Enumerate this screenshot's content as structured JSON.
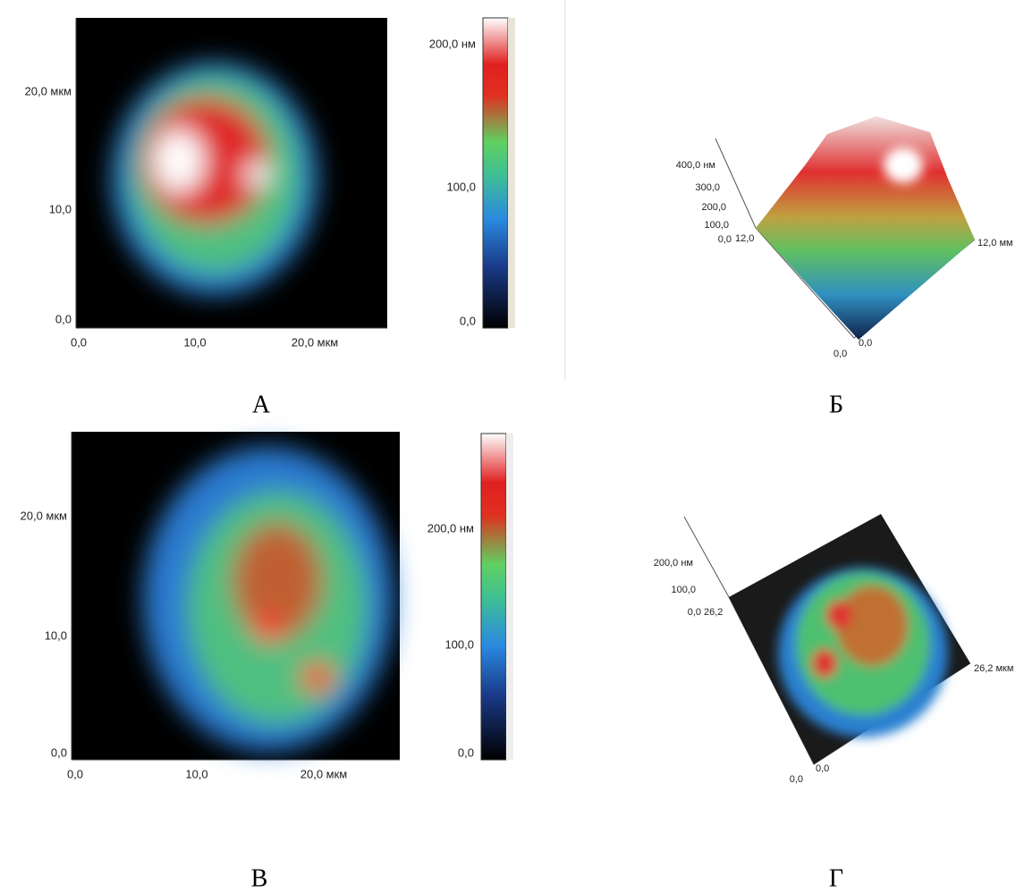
{
  "panels": [
    {
      "label": "А",
      "x_ticks": [
        "0,0",
        "10,0",
        "20,0 мкм"
      ],
      "y_ticks": [
        "0,0",
        "10,0",
        "20,0 мкм"
      ],
      "colorbar_ticks": [
        "0,0",
        "100,0",
        "200,0 нм"
      ]
    },
    {
      "label": "Б",
      "z_ticks": [
        "0,0",
        "100,0",
        "200,0",
        "300,0",
        "400,0 нм"
      ],
      "axis_labels": [
        "12,0",
        "12,0 мм",
        "0,0",
        "0,0"
      ]
    },
    {
      "label": "В",
      "x_ticks": [
        "0,0",
        "10,0",
        "20,0 мкм"
      ],
      "y_ticks": [
        "0,0",
        "10,0",
        "20,0 мкм"
      ],
      "colorbar_ticks": [
        "0,0",
        "100,0",
        "200,0 нм"
      ]
    },
    {
      "label": "Г",
      "z_ticks": [
        "0,0",
        "100,0",
        "200,0 нм"
      ],
      "axis_labels": [
        "26,2",
        "26,2 мкм",
        "0,0",
        "0,0"
      ]
    }
  ]
}
